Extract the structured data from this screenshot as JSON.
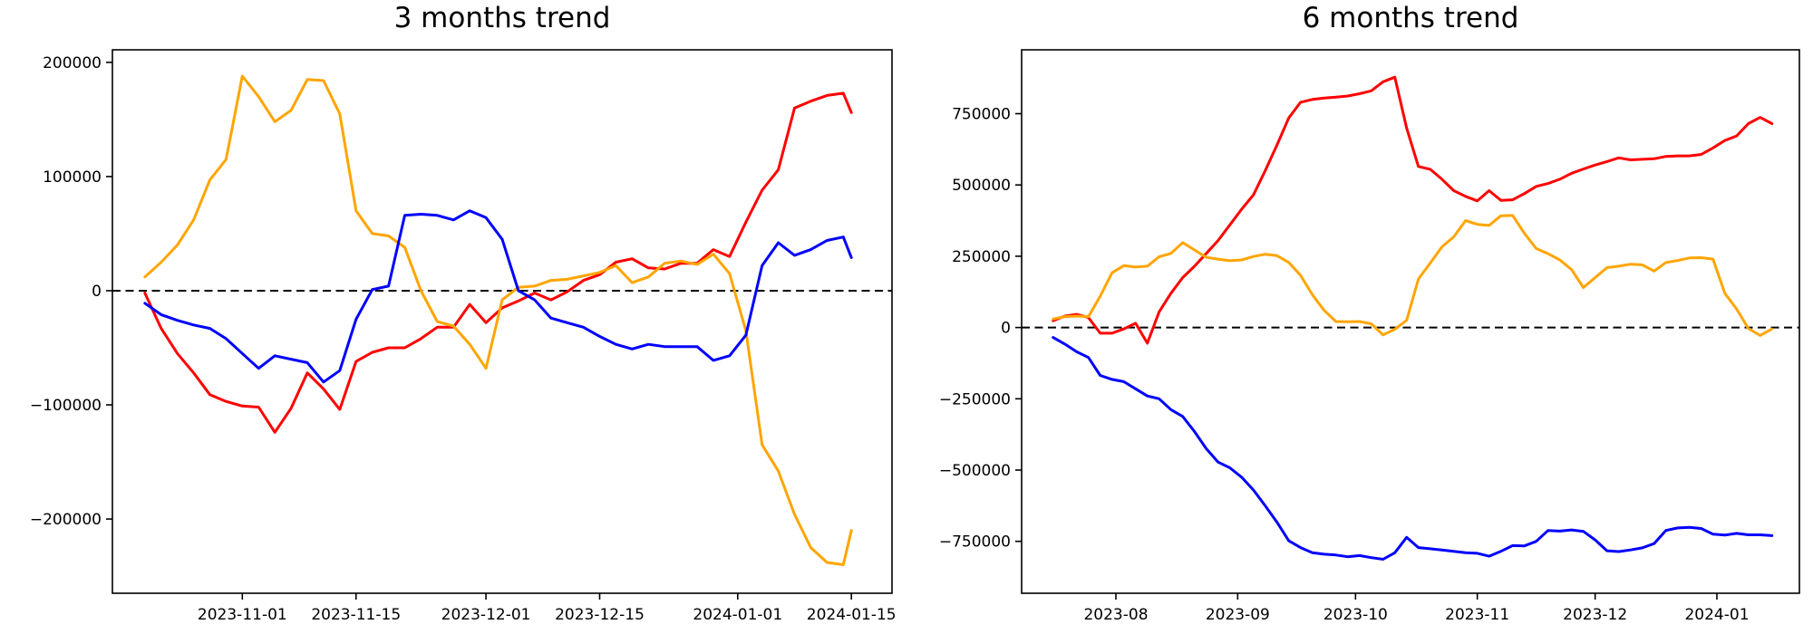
{
  "page": {
    "background": "#ffffff"
  },
  "chart_data": [
    {
      "type": "line",
      "title": "3 months trend",
      "grid": false,
      "legend": "none",
      "zero_line": {
        "show": true,
        "color": "#000000",
        "style": "dashed"
      },
      "x_axis": {
        "range": [
          "2023-10-16",
          "2024-01-20"
        ],
        "ticks": [
          {
            "date": "2023-11-01",
            "label": "2023-11-01"
          },
          {
            "date": "2023-11-15",
            "label": "2023-11-15"
          },
          {
            "date": "2023-12-01",
            "label": "2023-12-01"
          },
          {
            "date": "2023-12-15",
            "label": "2023-12-15"
          },
          {
            "date": "2024-01-01",
            "label": "2024-01-01"
          },
          {
            "date": "2024-01-15",
            "label": "2024-01-15"
          }
        ]
      },
      "y_axis": {
        "range": [
          -265000,
          211000
        ],
        "ticks": [
          {
            "value": 200000,
            "label": "200000"
          },
          {
            "value": 100000,
            "label": "100000"
          },
          {
            "value": 0,
            "label": "0"
          },
          {
            "value": -100000,
            "label": "−100000"
          },
          {
            "value": -200000,
            "label": "−200000"
          }
        ]
      },
      "x_dates": [
        "2023-10-20",
        "2023-10-22",
        "2023-10-24",
        "2023-10-26",
        "2023-10-28",
        "2023-10-30",
        "2023-11-01",
        "2023-11-03",
        "2023-11-05",
        "2023-11-07",
        "2023-11-09",
        "2023-11-11",
        "2023-11-13",
        "2023-11-15",
        "2023-11-17",
        "2023-11-19",
        "2023-11-21",
        "2023-11-23",
        "2023-11-25",
        "2023-11-27",
        "2023-11-29",
        "2023-12-01",
        "2023-12-03",
        "2023-12-05",
        "2023-12-07",
        "2023-12-09",
        "2023-12-11",
        "2023-12-13",
        "2023-12-15",
        "2023-12-17",
        "2023-12-19",
        "2023-12-21",
        "2023-12-23",
        "2023-12-25",
        "2023-12-27",
        "2023-12-29",
        "2023-12-31",
        "2024-01-02",
        "2024-01-04",
        "2024-01-06",
        "2024-01-08",
        "2024-01-10",
        "2024-01-12",
        "2024-01-14",
        "2024-01-15"
      ],
      "series": [
        {
          "name": "red-series",
          "color": "#ff0000",
          "values": [
            -2000,
            -33000,
            -55000,
            -72000,
            -91000,
            -97000,
            -101000,
            -102000,
            -124000,
            -103000,
            -72000,
            -86000,
            -104000,
            -62000,
            -54000,
            -50000,
            -50000,
            -42000,
            -32000,
            -32000,
            -12000,
            -28000,
            -15000,
            -9000,
            -2000,
            -8000,
            -1000,
            9000,
            14000,
            25000,
            28000,
            20000,
            19000,
            24000,
            24000,
            36000,
            30000,
            60000,
            88000,
            106000,
            160000,
            166000,
            171000,
            173000,
            156000
          ]
        },
        {
          "name": "orange-series",
          "color": "#ffa500",
          "values": [
            12000,
            25000,
            40000,
            62000,
            97000,
            115000,
            188000,
            170000,
            148000,
            158000,
            185000,
            184000,
            155000,
            70000,
            50000,
            48000,
            38000,
            0,
            -27000,
            -31000,
            -47000,
            -68000,
            -8000,
            3000,
            4000,
            9000,
            10000,
            13000,
            16000,
            22000,
            7000,
            12000,
            24000,
            26000,
            23000,
            32000,
            15000,
            -35000,
            -135000,
            -158000,
            -196000,
            -225000,
            -238000,
            -240000,
            -210000
          ]
        },
        {
          "name": "blue-series",
          "color": "#0000ff",
          "values": [
            -11000,
            -21000,
            -26000,
            -30000,
            -33000,
            -42000,
            -55000,
            -68000,
            -57000,
            -60000,
            -63000,
            -80000,
            -70000,
            -25000,
            1000,
            4000,
            66000,
            67000,
            66000,
            62000,
            70000,
            64000,
            45000,
            0,
            -8000,
            -24000,
            -28000,
            -32000,
            -40000,
            -47000,
            -51000,
            -47000,
            -49000,
            -49000,
            -49000,
            -61000,
            -57000,
            -39000,
            22000,
            42000,
            31000,
            36000,
            44000,
            47000,
            29000
          ]
        }
      ]
    },
    {
      "type": "line",
      "title": "6 months trend",
      "grid": false,
      "legend": "none",
      "zero_line": {
        "show": true,
        "color": "#000000",
        "style": "dashed"
      },
      "x_axis": {
        "range": [
          "2023-07-08",
          "2024-01-22"
        ],
        "ticks": [
          {
            "date": "2023-08-01",
            "label": "2023-08"
          },
          {
            "date": "2023-09-01",
            "label": "2023-09"
          },
          {
            "date": "2023-10-01",
            "label": "2023-10"
          },
          {
            "date": "2023-11-01",
            "label": "2023-11"
          },
          {
            "date": "2023-12-01",
            "label": "2023-12"
          },
          {
            "date": "2024-01-01",
            "label": "2024-01"
          }
        ]
      },
      "y_axis": {
        "range": [
          -932000,
          974000
        ],
        "ticks": [
          {
            "value": 750000,
            "label": "750000"
          },
          {
            "value": 500000,
            "label": "500000"
          },
          {
            "value": 250000,
            "label": "250000"
          },
          {
            "value": 0,
            "label": "0"
          },
          {
            "value": -250000,
            "label": "−250000"
          },
          {
            "value": -500000,
            "label": "−500000"
          },
          {
            "value": -750000,
            "label": "−750000"
          }
        ]
      },
      "x_dates": [
        "2023-07-16",
        "2023-07-19",
        "2023-07-22",
        "2023-07-25",
        "2023-07-28",
        "2023-07-31",
        "2023-08-03",
        "2023-08-06",
        "2023-08-09",
        "2023-08-12",
        "2023-08-15",
        "2023-08-18",
        "2023-08-21",
        "2023-08-24",
        "2023-08-27",
        "2023-08-30",
        "2023-09-02",
        "2023-09-05",
        "2023-09-08",
        "2023-09-11",
        "2023-09-14",
        "2023-09-17",
        "2023-09-20",
        "2023-09-23",
        "2023-09-26",
        "2023-09-29",
        "2023-10-02",
        "2023-10-05",
        "2023-10-08",
        "2023-10-11",
        "2023-10-14",
        "2023-10-17",
        "2023-10-20",
        "2023-10-23",
        "2023-10-26",
        "2023-10-29",
        "2023-11-01",
        "2023-11-04",
        "2023-11-07",
        "2023-11-10",
        "2023-11-13",
        "2023-11-16",
        "2023-11-19",
        "2023-11-22",
        "2023-11-25",
        "2023-11-28",
        "2023-12-01",
        "2023-12-04",
        "2023-12-07",
        "2023-12-10",
        "2023-12-13",
        "2023-12-16",
        "2023-12-19",
        "2023-12-22",
        "2023-12-25",
        "2023-12-28",
        "2023-12-31",
        "2024-01-03",
        "2024-01-06",
        "2024-01-09",
        "2024-01-12",
        "2024-01-15"
      ],
      "series": [
        {
          "name": "red-series",
          "color": "#ff0000",
          "values": [
            24000,
            40000,
            46000,
            35000,
            -20000,
            -20000,
            -5000,
            15000,
            -55000,
            55000,
            120000,
            175000,
            215000,
            260000,
            305000,
            360000,
            415000,
            465000,
            550000,
            640000,
            735000,
            790000,
            800000,
            805000,
            808000,
            812000,
            820000,
            830000,
            862000,
            878000,
            700000,
            565000,
            555000,
            520000,
            480000,
            460000,
            444000,
            480000,
            446000,
            448000,
            470000,
            495000,
            505000,
            520000,
            541000,
            556000,
            570000,
            582000,
            595000,
            588000,
            590000,
            592000,
            600000,
            602000,
            602000,
            607000,
            630000,
            656000,
            672000,
            715000,
            737000,
            715000
          ]
        },
        {
          "name": "orange-series",
          "color": "#ffa500",
          "values": [
            30000,
            38000,
            40000,
            38000,
            110000,
            192000,
            217000,
            212000,
            215000,
            248000,
            260000,
            298000,
            272000,
            246000,
            240000,
            234000,
            237000,
            249000,
            257000,
            252000,
            228000,
            183000,
            115000,
            60000,
            21000,
            20000,
            21000,
            13000,
            -26000,
            -6000,
            25000,
            170000,
            226000,
            283000,
            318000,
            375000,
            362000,
            358000,
            392000,
            393000,
            330000,
            277000,
            259000,
            237000,
            203000,
            140000,
            175000,
            210000,
            215000,
            222000,
            220000,
            198000,
            228000,
            235000,
            244000,
            245000,
            240000,
            120000,
            65000,
            -3000,
            -28000,
            -5000
          ]
        },
        {
          "name": "blue-series",
          "color": "#0000ff",
          "values": [
            -35000,
            -58000,
            -85000,
            -105000,
            -168000,
            -182000,
            -190000,
            -215000,
            -240000,
            -250000,
            -288000,
            -312000,
            -365000,
            -425000,
            -472000,
            -492000,
            -525000,
            -570000,
            -625000,
            -683000,
            -748000,
            -772000,
            -790000,
            -795000,
            -798000,
            -804000,
            -800000,
            -807000,
            -813000,
            -790000,
            -736000,
            -772000,
            -776000,
            -780000,
            -785000,
            -790000,
            -792000,
            -802000,
            -785000,
            -765000,
            -766000,
            -750000,
            -712000,
            -714000,
            -710000,
            -715000,
            -745000,
            -783000,
            -786000,
            -780000,
            -773000,
            -758000,
            -712000,
            -703000,
            -701000,
            -705000,
            -725000,
            -728000,
            -722000,
            -727000,
            -727000,
            -730000
          ]
        }
      ]
    }
  ]
}
